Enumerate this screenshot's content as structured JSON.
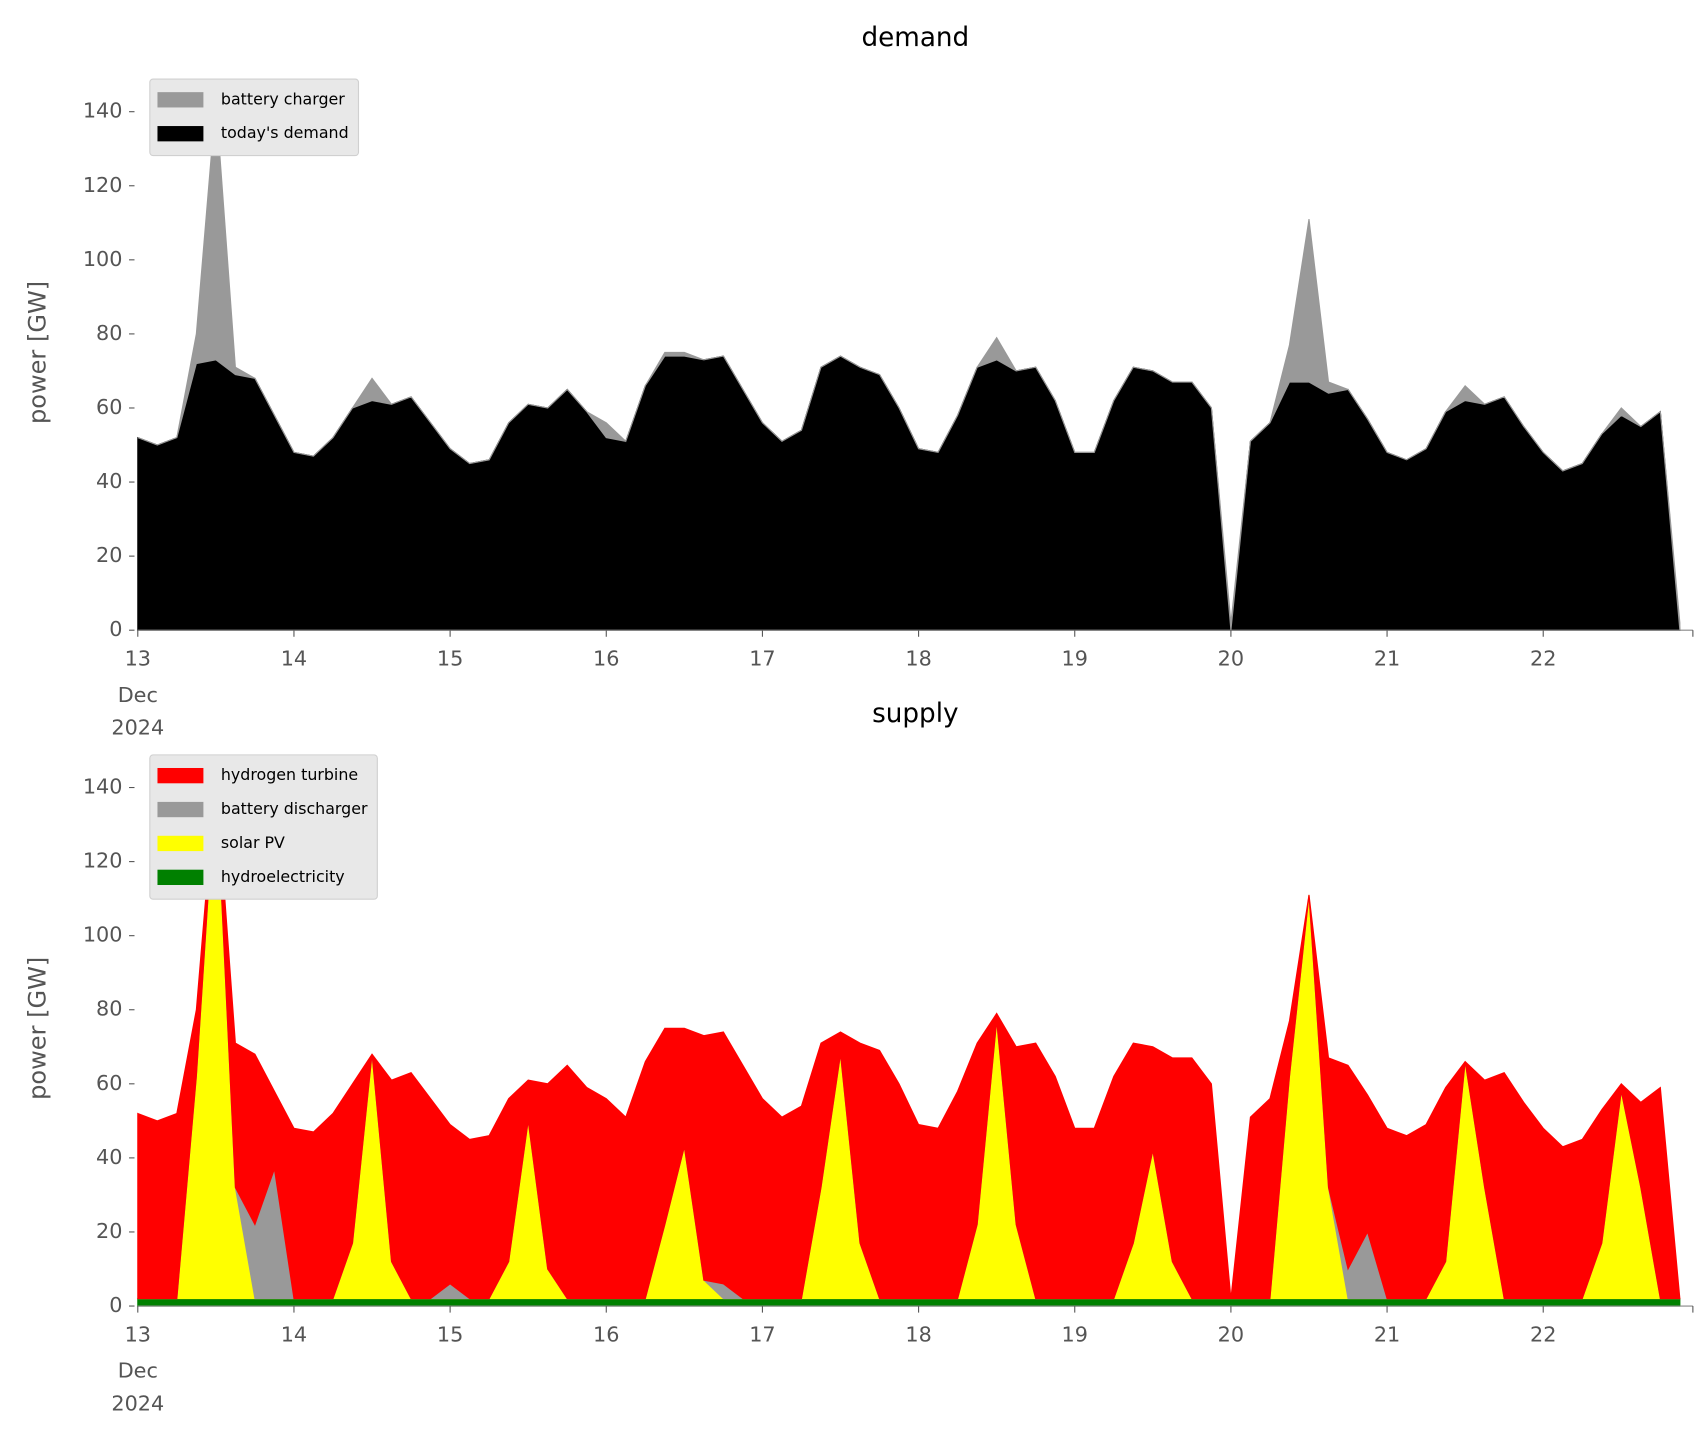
{
  "chart_data": [
    {
      "type": "area",
      "title": "demand",
      "ylabel": "power [GW]",
      "stacked": true,
      "legend": "upper left",
      "x": [
        "2024-12-13T00:00",
        "2024-12-13T03:00",
        "2024-12-13T06:00",
        "2024-12-13T09:00",
        "2024-12-13T12:00",
        "2024-12-13T15:00",
        "2024-12-13T18:00",
        "2024-12-13T21:00",
        "2024-12-14T00:00",
        "2024-12-14T03:00",
        "2024-12-14T06:00",
        "2024-12-14T09:00",
        "2024-12-14T12:00",
        "2024-12-14T15:00",
        "2024-12-14T18:00",
        "2024-12-14T21:00",
        "2024-12-15T00:00",
        "2024-12-15T03:00",
        "2024-12-15T06:00",
        "2024-12-15T09:00",
        "2024-12-15T12:00",
        "2024-12-15T15:00",
        "2024-12-15T18:00",
        "2024-12-15T21:00",
        "2024-12-16T00:00",
        "2024-12-16T03:00",
        "2024-12-16T06:00",
        "2024-12-16T09:00",
        "2024-12-16T12:00",
        "2024-12-16T15:00",
        "2024-12-16T18:00",
        "2024-12-16T21:00",
        "2024-12-17T00:00",
        "2024-12-17T03:00",
        "2024-12-17T06:00",
        "2024-12-17T09:00",
        "2024-12-17T12:00",
        "2024-12-17T15:00",
        "2024-12-17T18:00",
        "2024-12-17T21:00",
        "2024-12-18T00:00",
        "2024-12-18T03:00",
        "2024-12-18T06:00",
        "2024-12-18T09:00",
        "2024-12-18T12:00",
        "2024-12-18T15:00",
        "2024-12-18T18:00",
        "2024-12-18T21:00",
        "2024-12-19T00:00",
        "2024-12-19T03:00",
        "2024-12-19T06:00",
        "2024-12-19T09:00",
        "2024-12-19T12:00",
        "2024-12-19T15:00",
        "2024-12-19T18:00",
        "2024-12-19T21:00",
        "2024-12-20T00:00",
        "2024-12-20T03:00",
        "2024-12-20T06:00",
        "2024-12-20T09:00",
        "2024-12-20T12:00",
        "2024-12-20T15:00",
        "2024-12-20T18:00",
        "2024-12-20T21:00",
        "2024-12-21T00:00",
        "2024-12-21T03:00",
        "2024-12-21T06:00",
        "2024-12-21T09:00",
        "2024-12-21T12:00",
        "2024-12-21T15:00",
        "2024-12-21T18:00",
        "2024-12-21T21:00",
        "2024-12-22T00:00",
        "2024-12-22T03:00",
        "2024-12-22T06:00",
        "2024-12-22T09:00",
        "2024-12-22T12:00",
        "2024-12-22T15:00",
        "2024-12-22T18:00",
        "2024-12-22T21:00"
      ],
      "series": [
        {
          "name": "battery charger",
          "color": "#999999",
          "values": [
            0,
            0,
            0,
            8,
            70,
            2,
            0,
            0,
            0,
            0,
            0,
            0,
            6,
            0,
            0,
            0,
            0,
            0,
            0,
            0,
            0,
            0,
            0,
            0,
            4,
            0,
            0,
            1,
            1,
            0,
            0,
            0,
            0,
            0,
            0,
            0,
            0,
            0,
            0,
            0,
            0,
            0,
            0,
            0,
            6,
            0,
            0,
            0,
            0,
            0,
            0,
            0,
            0,
            0,
            0,
            0,
            2,
            0,
            0,
            10,
            44,
            3,
            0,
            0,
            0,
            0,
            0,
            0,
            4,
            0,
            0,
            0,
            0,
            0,
            0,
            0,
            2,
            0,
            0,
            2
          ]
        },
        {
          "name": "today's demand",
          "color": "#000000",
          "values": [
            52,
            50,
            52,
            72,
            73,
            69,
            68,
            58,
            48,
            47,
            52,
            60,
            62,
            61,
            63,
            56,
            49,
            45,
            46,
            56,
            61,
            60,
            65,
            59,
            52,
            51,
            66,
            74,
            74,
            73,
            74,
            65,
            56,
            51,
            54,
            71,
            74,
            71,
            69,
            60,
            49,
            48,
            58,
            71,
            73,
            70,
            71,
            62,
            48,
            48,
            62,
            71,
            70,
            67,
            67,
            60,
            0,
            51,
            56,
            67,
            67,
            64,
            65,
            57,
            48,
            46,
            49,
            59,
            62,
            61,
            63,
            55,
            48,
            43,
            45,
            53,
            58,
            55,
            59,
            0
          ]
        }
      ],
      "xlim": [
        "2024-12-13T00:00",
        "2024-12-22T23:00"
      ],
      "xticks": [
        {
          "value": "2024-12-13T00:00",
          "label": "13"
        },
        {
          "value": "2024-12-14T00:00",
          "label": "14"
        },
        {
          "value": "2024-12-15T00:00",
          "label": "15"
        },
        {
          "value": "2024-12-16T00:00",
          "label": "16"
        },
        {
          "value": "2024-12-17T00:00",
          "label": "17"
        },
        {
          "value": "2024-12-18T00:00",
          "label": "18"
        },
        {
          "value": "2024-12-19T00:00",
          "label": "19"
        },
        {
          "value": "2024-12-20T00:00",
          "label": "20"
        },
        {
          "value": "2024-12-21T00:00",
          "label": "21"
        },
        {
          "value": "2024-12-22T00:00",
          "label": "22"
        }
      ],
      "xtick_month": "Dec",
      "xtick_year": "2024",
      "ylim": [
        0,
        150
      ],
      "yticks": [
        0,
        20,
        40,
        60,
        80,
        100,
        120,
        140
      ]
    },
    {
      "type": "area",
      "title": "supply",
      "ylabel": "power [GW]",
      "stacked": true,
      "legend": "upper left",
      "x": [
        "2024-12-13T00:00",
        "2024-12-13T03:00",
        "2024-12-13T06:00",
        "2024-12-13T09:00",
        "2024-12-13T12:00",
        "2024-12-13T15:00",
        "2024-12-13T18:00",
        "2024-12-13T21:00",
        "2024-12-14T00:00",
        "2024-12-14T03:00",
        "2024-12-14T06:00",
        "2024-12-14T09:00",
        "2024-12-14T12:00",
        "2024-12-14T15:00",
        "2024-12-14T18:00",
        "2024-12-14T21:00",
        "2024-12-15T00:00",
        "2024-12-15T03:00",
        "2024-12-15T06:00",
        "2024-12-15T09:00",
        "2024-12-15T12:00",
        "2024-12-15T15:00",
        "2024-12-15T18:00",
        "2024-12-15T21:00",
        "2024-12-16T00:00",
        "2024-12-16T03:00",
        "2024-12-16T06:00",
        "2024-12-16T09:00",
        "2024-12-16T12:00",
        "2024-12-16T15:00",
        "2024-12-16T18:00",
        "2024-12-16T21:00",
        "2024-12-17T00:00",
        "2024-12-17T03:00",
        "2024-12-17T06:00",
        "2024-12-17T09:00",
        "2024-12-17T12:00",
        "2024-12-17T15:00",
        "2024-12-17T18:00",
        "2024-12-17T21:00",
        "2024-12-18T00:00",
        "2024-12-18T03:00",
        "2024-12-18T06:00",
        "2024-12-18T09:00",
        "2024-12-18T12:00",
        "2024-12-18T15:00",
        "2024-12-18T18:00",
        "2024-12-18T21:00",
        "2024-12-19T00:00",
        "2024-12-19T03:00",
        "2024-12-19T06:00",
        "2024-12-19T09:00",
        "2024-12-19T12:00",
        "2024-12-19T15:00",
        "2024-12-19T18:00",
        "2024-12-19T21:00",
        "2024-12-20T00:00",
        "2024-12-20T03:00",
        "2024-12-20T06:00",
        "2024-12-20T09:00",
        "2024-12-20T12:00",
        "2024-12-20T15:00",
        "2024-12-20T18:00",
        "2024-12-20T21:00",
        "2024-12-21T00:00",
        "2024-12-21T03:00",
        "2024-12-21T06:00",
        "2024-12-21T09:00",
        "2024-12-21T12:00",
        "2024-12-21T15:00",
        "2024-12-21T18:00",
        "2024-12-21T21:00",
        "2024-12-22T00:00",
        "2024-12-22T03:00",
        "2024-12-22T06:00",
        "2024-12-22T09:00",
        "2024-12-22T12:00",
        "2024-12-22T15:00",
        "2024-12-22T18:00",
        "2024-12-22T21:00"
      ],
      "series": [
        {
          "name": "hydrogen turbine",
          "color": "#ff0000",
          "values": [
            50,
            48,
            50,
            18,
            0,
            39,
            46,
            21,
            46,
            45,
            50,
            43,
            0,
            49,
            61,
            54,
            43,
            43,
            44,
            44,
            11,
            50,
            63,
            57,
            54,
            49,
            64,
            53,
            32,
            66,
            68,
            63,
            54,
            49,
            52,
            39,
            6,
            54,
            67,
            58,
            47,
            46,
            56,
            49,
            2,
            48,
            69,
            60,
            46,
            46,
            60,
            54,
            28,
            55,
            65,
            58,
            0,
            49,
            54,
            15,
            0,
            35,
            55,
            37,
            46,
            44,
            47,
            47,
            0,
            29,
            61,
            53,
            46,
            41,
            43,
            36,
            2,
            23,
            57,
            0
          ]
        },
        {
          "name": "battery discharger",
          "color": "#999999",
          "values": [
            0,
            0,
            0,
            0,
            0,
            0,
            20,
            35,
            0,
            0,
            0,
            0,
            0,
            0,
            0,
            0,
            4,
            0,
            0,
            0,
            0,
            0,
            0,
            0,
            0,
            0,
            0,
            0,
            0,
            0,
            4,
            0,
            0,
            0,
            0,
            0,
            0,
            0,
            0,
            0,
            0,
            0,
            0,
            0,
            0,
            0,
            0,
            0,
            0,
            0,
            0,
            0,
            0,
            0,
            0,
            0,
            0,
            0,
            0,
            0,
            0,
            0,
            8,
            18,
            0,
            0,
            0,
            0,
            0,
            0,
            0,
            0,
            0,
            0,
            0,
            0,
            0,
            0,
            0,
            0
          ]
        },
        {
          "name": "solar PV",
          "color": "#ffff00",
          "values": [
            0,
            0,
            0,
            60,
            141,
            30,
            0,
            0,
            0,
            0,
            0,
            15,
            66,
            10,
            0,
            0,
            0,
            0,
            0,
            10,
            48,
            8,
            0,
            0,
            0,
            0,
            0,
            20,
            41,
            5,
            0,
            0,
            0,
            0,
            0,
            30,
            66,
            15,
            0,
            0,
            0,
            0,
            0,
            20,
            75,
            20,
            0,
            0,
            0,
            0,
            0,
            15,
            40,
            10,
            0,
            0,
            0,
            0,
            0,
            60,
            109,
            30,
            0,
            0,
            0,
            0,
            0,
            10,
            64,
            30,
            0,
            0,
            0,
            0,
            0,
            15,
            56,
            30,
            0,
            0
          ]
        },
        {
          "name": "hydroelectricity",
          "color": "#008000",
          "values": [
            2,
            2,
            2,
            2,
            2,
            2,
            2,
            2,
            2,
            2,
            2,
            2,
            2,
            2,
            2,
            2,
            2,
            2,
            2,
            2,
            2,
            2,
            2,
            2,
            2,
            2,
            2,
            2,
            2,
            2,
            2,
            2,
            2,
            2,
            2,
            2,
            2,
            2,
            2,
            2,
            2,
            2,
            2,
            2,
            2,
            2,
            2,
            2,
            2,
            2,
            2,
            2,
            2,
            2,
            2,
            2,
            2,
            2,
            2,
            2,
            2,
            2,
            2,
            2,
            2,
            2,
            2,
            2,
            2,
            2,
            2,
            2,
            2,
            2,
            2,
            2,
            2,
            2,
            2,
            2
          ]
        }
      ],
      "xlim": [
        "2024-12-13T00:00",
        "2024-12-22T23:00"
      ],
      "xticks": [
        {
          "value": "2024-12-13T00:00",
          "label": "13"
        },
        {
          "value": "2024-12-14T00:00",
          "label": "14"
        },
        {
          "value": "2024-12-15T00:00",
          "label": "15"
        },
        {
          "value": "2024-12-16T00:00",
          "label": "16"
        },
        {
          "value": "2024-12-17T00:00",
          "label": "17"
        },
        {
          "value": "2024-12-18T00:00",
          "label": "18"
        },
        {
          "value": "2024-12-19T00:00",
          "label": "19"
        },
        {
          "value": "2024-12-20T00:00",
          "label": "20"
        },
        {
          "value": "2024-12-21T00:00",
          "label": "21"
        },
        {
          "value": "2024-12-22T00:00",
          "label": "22"
        }
      ],
      "xtick_month": "Dec",
      "xtick_year": "2024",
      "ylim": [
        0,
        150
      ],
      "yticks": [
        0,
        20,
        40,
        60,
        80,
        100,
        120,
        140
      ]
    }
  ]
}
